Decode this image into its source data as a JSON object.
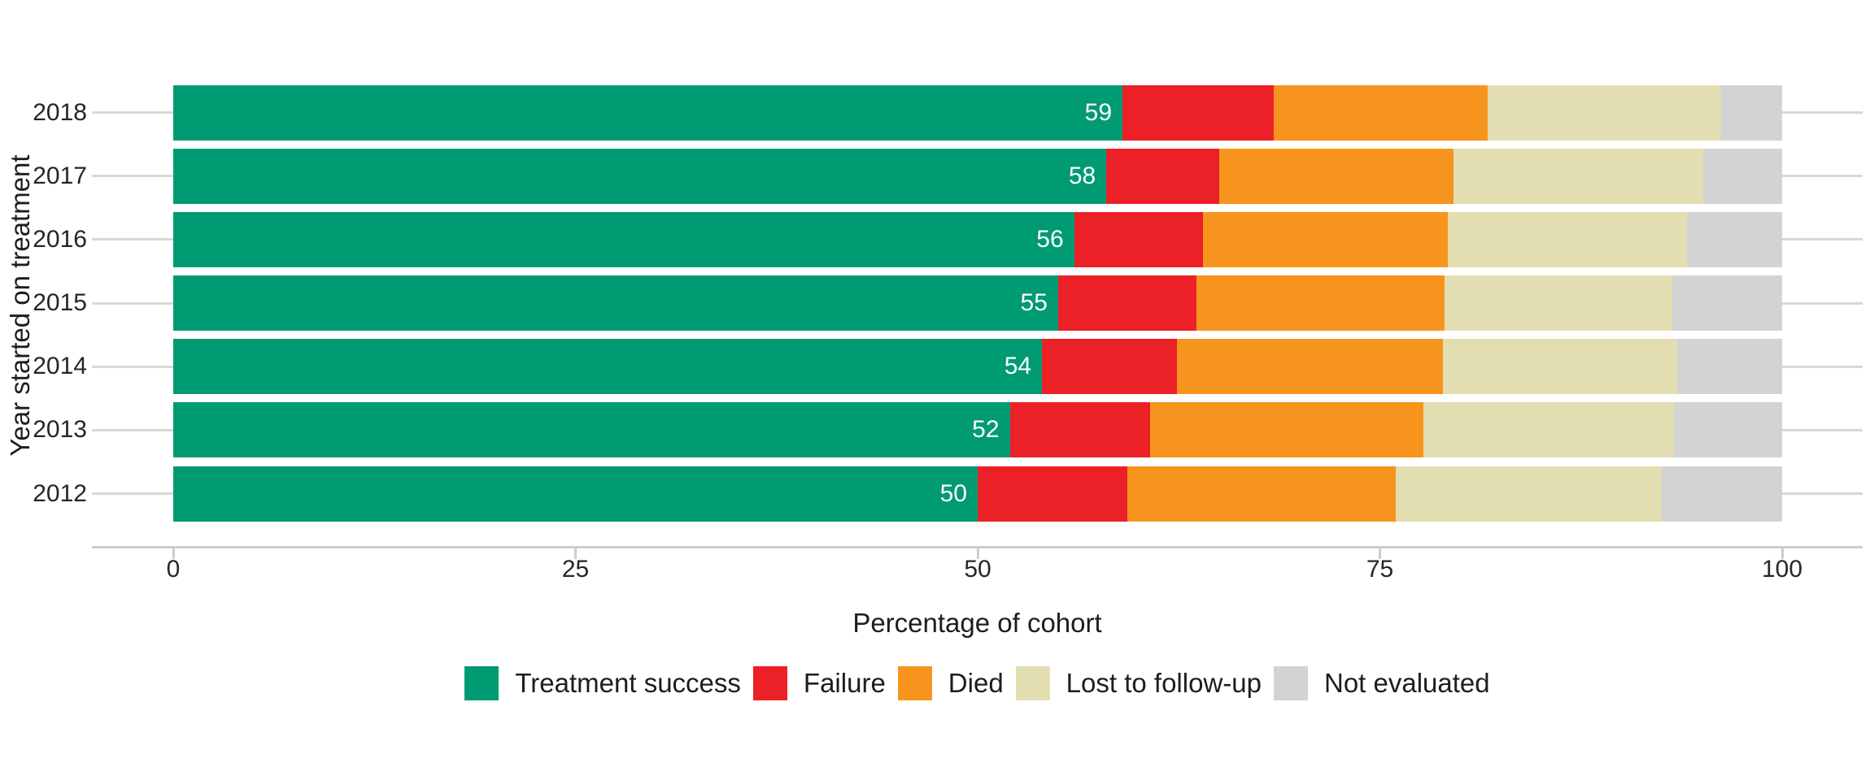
{
  "chart_data": {
    "type": "bar",
    "orientation": "horizontal",
    "stacked": true,
    "title": "",
    "xlabel": "Percentage of cohort",
    "ylabel": "Year started on treatment",
    "xlim": [
      0,
      100
    ],
    "xticks": [
      0,
      25,
      50,
      75,
      100
    ],
    "xtick_labels": [
      "0",
      "25",
      "50",
      "75",
      "100"
    ],
    "categories": [
      "2018",
      "2017",
      "2016",
      "2015",
      "2014",
      "2013",
      "2012"
    ],
    "series": [
      {
        "name": "Treatment success",
        "color": "#009A73",
        "values": [
          59,
          58,
          56,
          55,
          54,
          52,
          50
        ]
      },
      {
        "name": "Failure",
        "color": "#EB2127",
        "values": [
          9.4,
          7.0,
          8.0,
          8.6,
          8.4,
          8.7,
          9.3
        ]
      },
      {
        "name": "Died",
        "color": "#F7941E",
        "values": [
          13.3,
          14.6,
          15.2,
          15.4,
          16.5,
          17.0,
          16.7
        ]
      },
      {
        "name": "Lost to follow-up",
        "color": "#E3DEB1",
        "values": [
          14.5,
          15.5,
          14.9,
          14.2,
          14.6,
          15.6,
          16.5
        ]
      },
      {
        "name": "Not evaluated",
        "color": "#D2D3D4",
        "values": [
          3.8,
          4.9,
          5.9,
          6.8,
          6.5,
          6.7,
          7.5
        ]
      }
    ],
    "bar_value_labels": [
      "59",
      "58",
      "56",
      "55",
      "54",
      "52",
      "50"
    ],
    "bar_value_label_series": "Treatment success",
    "legend_position": "bottom",
    "grid": "horizontal-category-lines",
    "style": {
      "grid_color": "#D8D8D8",
      "axis_color": "#CDCDCD",
      "text_color": "#262626",
      "bar_label_color": "#FFFFFF",
      "background": "#FFFFFF"
    }
  }
}
